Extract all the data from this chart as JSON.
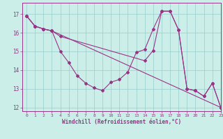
{
  "xlabel": "Windchill (Refroidissement éolien,°C)",
  "bg_color": "#cceee8",
  "line_color": "#993388",
  "grid_color": "#99cccc",
  "xlim": [
    -0.5,
    23
  ],
  "ylim": [
    11.8,
    17.6
  ],
  "yticks": [
    12,
    13,
    14,
    15,
    16,
    17
  ],
  "xticks": [
    0,
    1,
    2,
    3,
    4,
    5,
    6,
    7,
    8,
    9,
    10,
    11,
    12,
    13,
    14,
    15,
    16,
    17,
    18,
    19,
    20,
    21,
    22,
    23
  ],
  "line1_x": [
    0,
    1,
    2,
    3,
    4,
    5,
    6,
    7,
    8,
    9,
    10,
    11,
    12,
    13,
    14,
    15,
    16,
    17,
    18,
    19,
    20,
    21,
    22,
    23
  ],
  "line1_y": [
    16.9,
    16.35,
    16.2,
    16.1,
    15.0,
    14.4,
    13.7,
    13.3,
    13.05,
    12.9,
    13.35,
    13.5,
    13.9,
    14.95,
    15.1,
    16.2,
    17.15,
    17.15,
    16.15,
    13.0,
    12.9,
    12.6,
    13.3,
    12.0
  ],
  "line2_x": [
    0,
    1,
    2,
    3,
    4,
    14,
    15,
    16,
    17,
    18,
    19,
    20,
    21,
    22,
    23
  ],
  "line2_y": [
    16.9,
    16.35,
    16.2,
    16.1,
    15.8,
    14.5,
    15.05,
    17.15,
    17.15,
    16.15,
    13.0,
    12.9,
    12.6,
    13.3,
    12.0
  ],
  "line3_x": [
    0,
    1,
    2,
    3,
    23
  ],
  "line3_y": [
    16.9,
    16.35,
    16.2,
    16.1,
    12.0
  ],
  "marker": "D",
  "markersize": 2.0,
  "linewidth": 0.8
}
